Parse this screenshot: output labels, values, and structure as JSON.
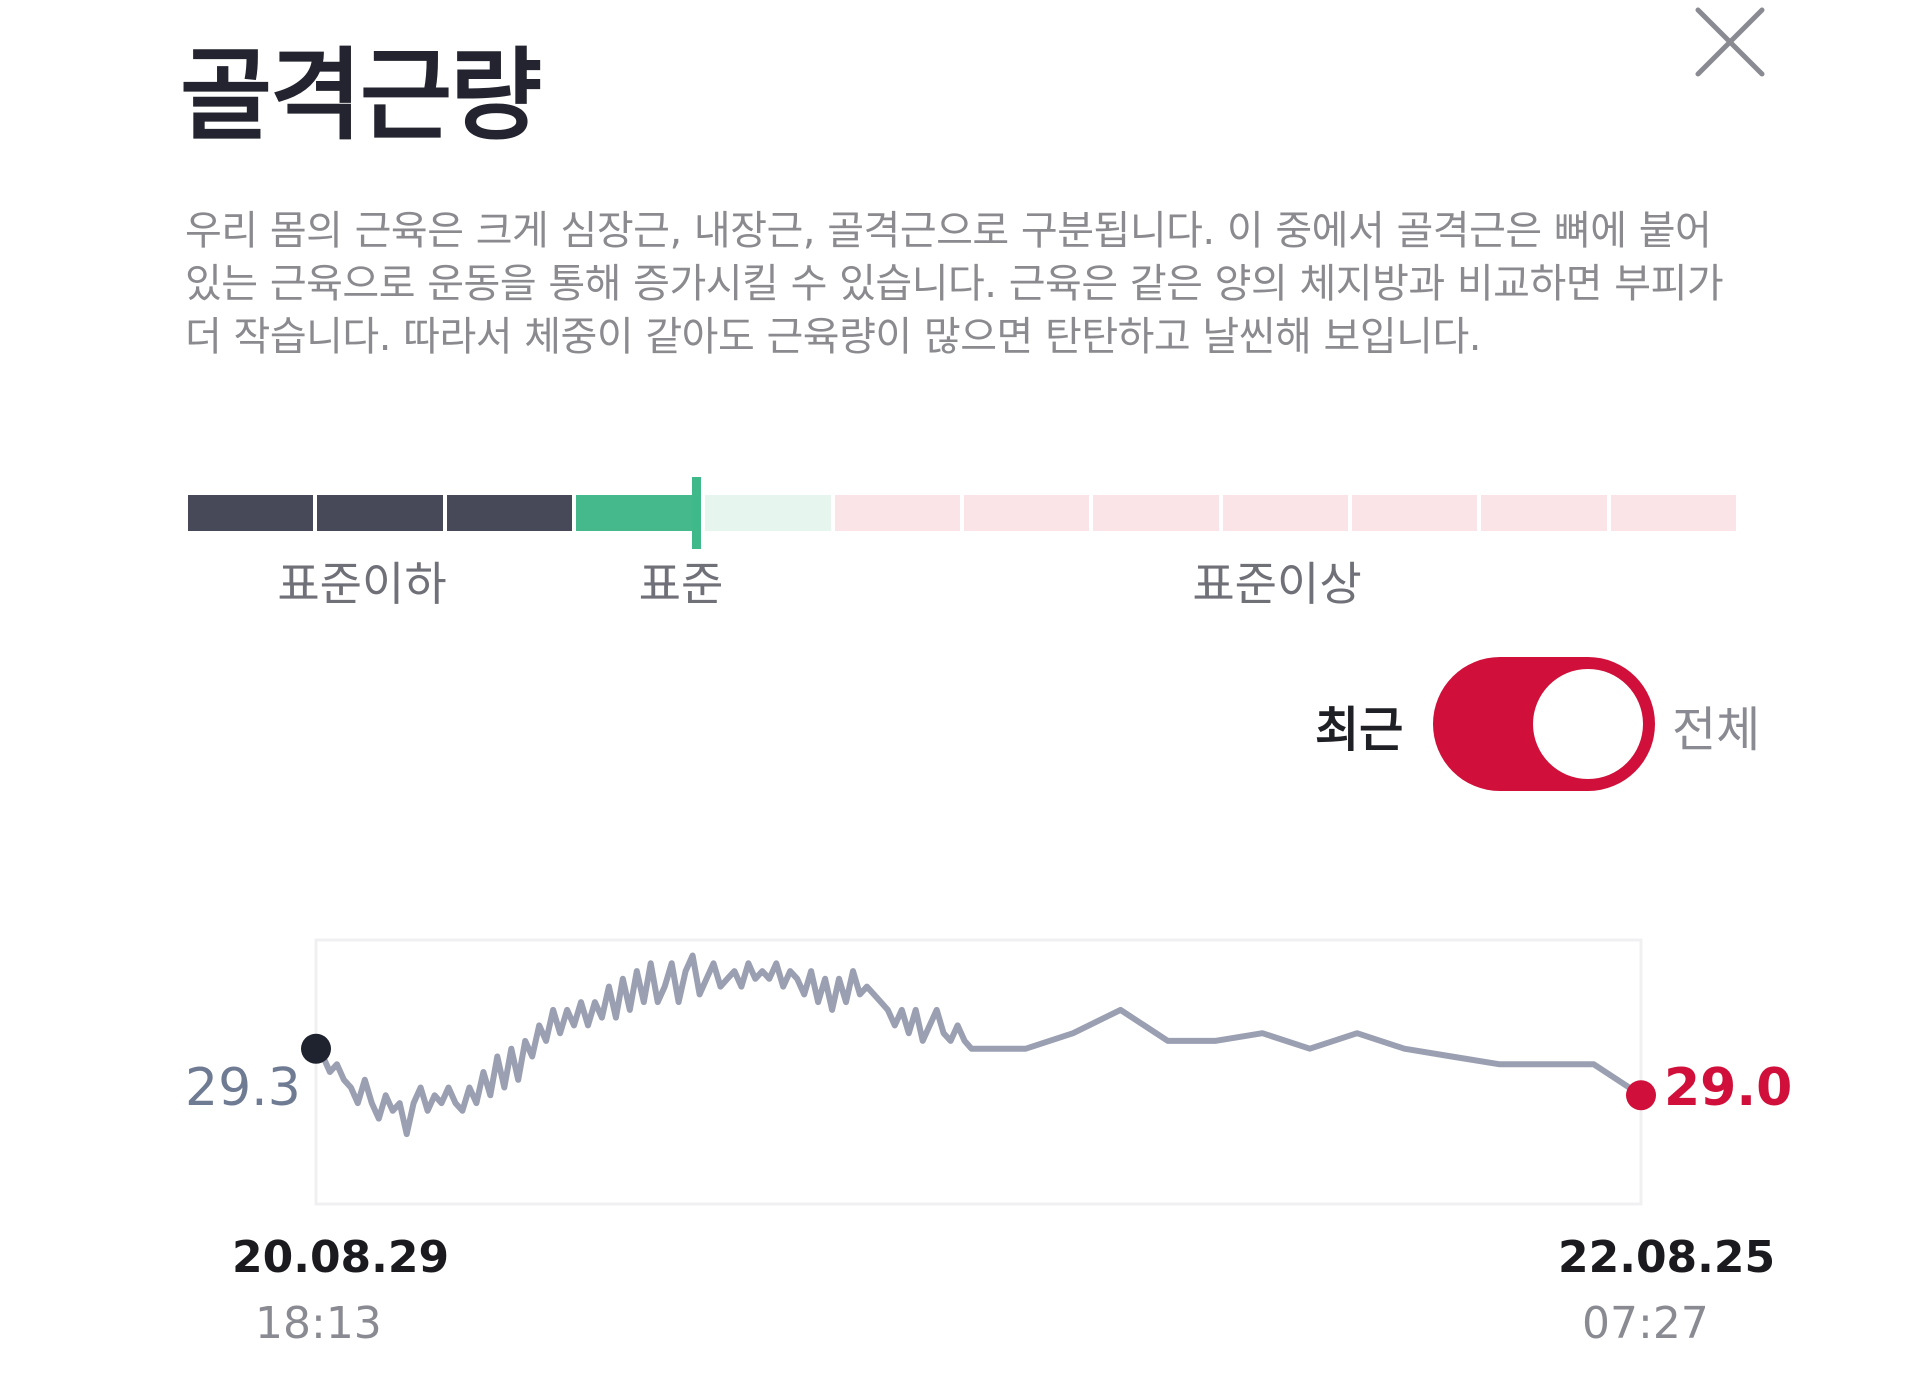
{
  "header": {
    "title": "골격근량"
  },
  "description": "우리 몸의 근육은 크게 심장근, 내장근, 골격근으로 구분됩니다. 이 중에서 골격근은 뼈에 붙어 있는 근육으로 운동을 통해 증가시킬 수 있습니다. 근육은 같은 양의 체지방과 비교하면 부피가 더 작습니다. 따라서 체중이 같아도 근육량이 많으면 탄탄하고 날씬해 보입니다.",
  "gauge": {
    "labels": {
      "below": "표준이하",
      "standard": "표준",
      "above": "표준이상"
    },
    "segments": [
      "below",
      "below",
      "below",
      "standard",
      "standard",
      "above",
      "above",
      "above",
      "above",
      "above",
      "above",
      "above"
    ],
    "current_segment_fraction": 0.328,
    "colors": {
      "below": "#474858",
      "standard_fill": "#46b98c",
      "standard_light": "#e6f6ef",
      "above": "#fbe4e8",
      "marker": "#3fb88a"
    }
  },
  "toggle": {
    "left_label": "최근",
    "right_label": "전체",
    "selected": "전체",
    "color": "#d0103a"
  },
  "chart_data": {
    "type": "line",
    "start": {
      "value": "29.3",
      "date": "20.08.29",
      "time": "18:13"
    },
    "end": {
      "value": "29.0",
      "date": "22.08.25",
      "time": "07:27"
    },
    "start_value": 29.3,
    "end_value": 29.0,
    "line_color": "#9b9fb2",
    "start_color": "#1f2330",
    "end_color": "#d0103a",
    "ylim": [
      28.3,
      30.0
    ],
    "values": [
      29.3,
      29.25,
      29.15,
      29.2,
      29.1,
      29.05,
      28.95,
      29.1,
      28.95,
      28.85,
      29.0,
      28.9,
      28.95,
      28.75,
      28.95,
      29.05,
      28.9,
      29.0,
      28.95,
      29.05,
      28.95,
      28.9,
      29.05,
      28.95,
      29.15,
      29.0,
      29.25,
      29.05,
      29.3,
      29.1,
      29.35,
      29.25,
      29.45,
      29.35,
      29.55,
      29.4,
      29.55,
      29.45,
      29.6,
      29.45,
      29.6,
      29.5,
      29.7,
      29.5,
      29.75,
      29.55,
      29.8,
      29.6,
      29.85,
      29.6,
      29.7,
      29.85,
      29.6,
      29.8,
      29.9,
      29.65,
      29.75,
      29.85,
      29.7,
      29.75,
      29.8,
      29.7,
      29.85,
      29.75,
      29.8,
      29.75,
      29.85,
      29.7,
      29.8,
      29.75,
      29.65,
      29.8,
      29.6,
      29.75,
      29.55,
      29.75,
      29.6,
      29.8,
      29.65,
      29.7,
      29.65,
      29.6,
      29.55,
      29.45,
      29.55,
      29.4,
      29.55,
      29.35,
      29.45,
      29.55,
      29.4,
      29.35,
      29.45,
      29.35,
      29.3,
      29.3,
      29.3,
      29.4,
      29.55,
      29.35,
      29.35,
      29.4,
      29.3,
      29.4,
      29.3,
      29.25,
      29.2,
      29.2,
      29.2,
      29.0
    ]
  }
}
